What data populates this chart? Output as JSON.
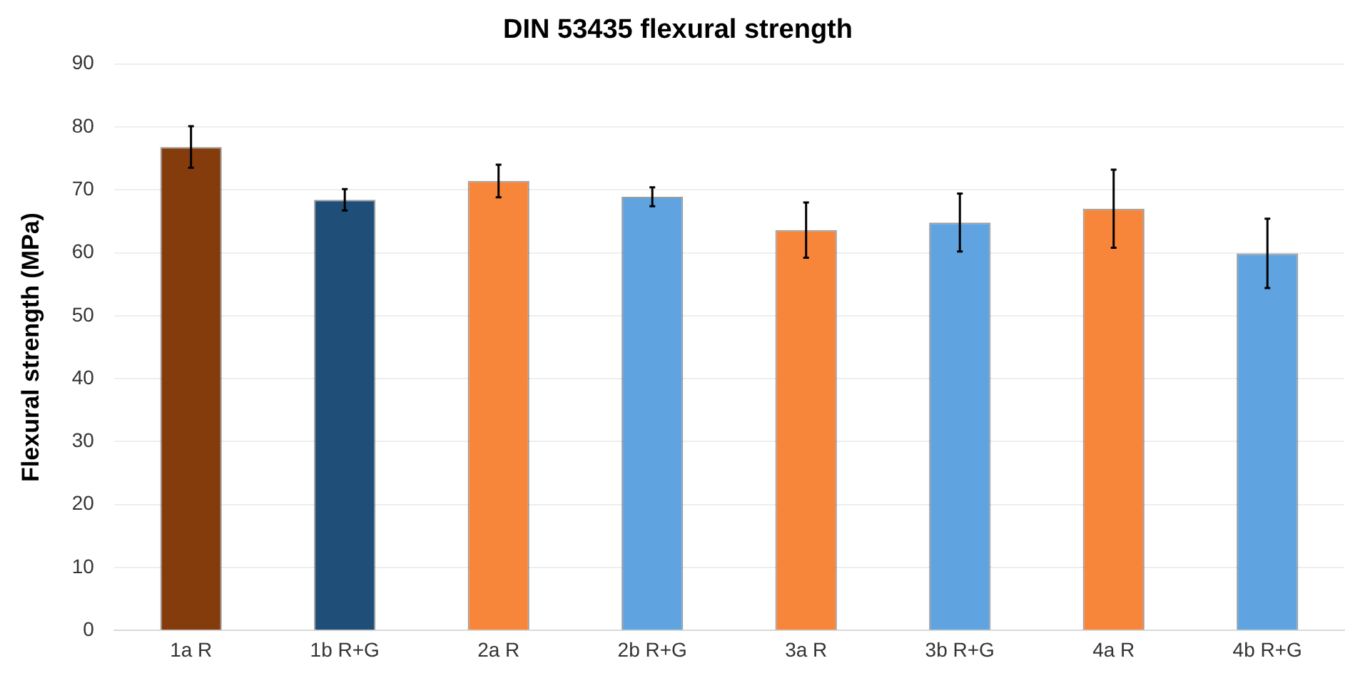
{
  "chart_data": {
    "type": "bar",
    "title": "DIN 53435 flexural strength",
    "ylabel": "Flexural strength (MPa)",
    "categories": [
      "1a R",
      "1b R+G",
      "2a R",
      "2b R+G",
      "3a R",
      "3b R+G",
      "4a R",
      "4b R+G"
    ],
    "values": [
      76.8,
      68.4,
      71.4,
      68.9,
      63.6,
      64.8,
      67.0,
      59.9
    ],
    "errors": [
      3.3,
      1.7,
      2.6,
      1.5,
      4.4,
      4.6,
      6.2,
      5.5
    ],
    "colors": [
      "#843c0c",
      "#1f4e79",
      "#f7853a",
      "#5fa3e0",
      "#f7853a",
      "#5fa3e0",
      "#f7853a",
      "#5fa3e0"
    ],
    "ylim": [
      0,
      90
    ],
    "yticks": [
      0,
      10,
      20,
      30,
      40,
      50,
      60,
      70,
      80,
      90
    ],
    "grid": "y"
  }
}
